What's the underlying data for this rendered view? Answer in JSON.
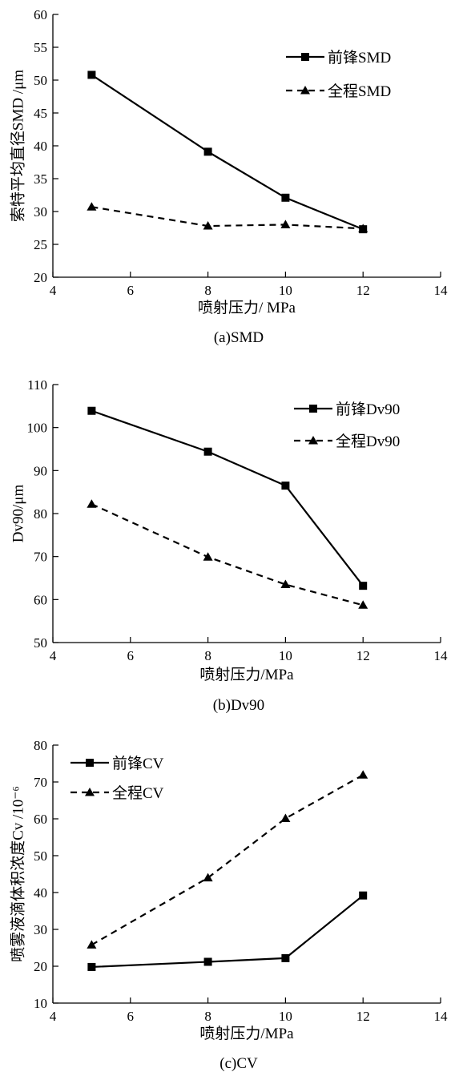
{
  "chart_data": [
    {
      "type": "line",
      "caption": "(a)SMD",
      "xlabel": "喷射压力/ MPa",
      "ylabel": "索特平均直径SMD /μm",
      "xlim": [
        4,
        14
      ],
      "ylim": [
        20,
        60
      ],
      "xticks": [
        4,
        6,
        8,
        10,
        12,
        14
      ],
      "yticks": [
        20,
        25,
        30,
        35,
        40,
        45,
        50,
        55,
        60
      ],
      "legend_position": "top-right",
      "x": [
        5,
        8,
        10,
        12
      ],
      "series": [
        {
          "name": "前锋SMD",
          "values": [
            50.8,
            39.1,
            32.1,
            27.3
          ],
          "style": "solid",
          "marker": "square"
        },
        {
          "name": "全程SMD",
          "values": [
            30.7,
            27.8,
            28.0,
            27.4
          ],
          "style": "dashed",
          "marker": "triangle"
        }
      ]
    },
    {
      "type": "line",
      "caption": "(b)Dv90",
      "xlabel": "喷射压力/MPa",
      "ylabel": "Dv90/μm",
      "xlim": [
        4,
        14
      ],
      "ylim": [
        50,
        110
      ],
      "xticks": [
        4,
        6,
        8,
        10,
        12,
        14
      ],
      "yticks": [
        50,
        60,
        70,
        80,
        90,
        100,
        110
      ],
      "legend_position": "top-right",
      "x": [
        5,
        8,
        10,
        12
      ],
      "series": [
        {
          "name": "前锋Dv90",
          "values": [
            103.9,
            94.4,
            86.5,
            63.2
          ],
          "style": "solid",
          "marker": "square"
        },
        {
          "name": "全程Dv90",
          "values": [
            82.2,
            69.9,
            63.5,
            58.7
          ],
          "style": "dashed",
          "marker": "triangle"
        }
      ]
    },
    {
      "type": "line",
      "caption": "(c)CV",
      "xlabel": "喷射压力/MPa",
      "ylabel": "喷雾液滴体积浓度Cv /10⁻⁶",
      "xlim": [
        4,
        14
      ],
      "ylim": [
        10,
        80
      ],
      "xticks": [
        4,
        6,
        8,
        10,
        12,
        14
      ],
      "yticks": [
        10,
        20,
        30,
        40,
        50,
        60,
        70,
        80
      ],
      "legend_position": "top-left",
      "x": [
        5,
        8,
        10,
        12
      ],
      "series": [
        {
          "name": "前锋CV",
          "values": [
            19.8,
            21.2,
            22.2,
            39.2
          ],
          "style": "solid",
          "marker": "square"
        },
        {
          "name": "全程CV",
          "values": [
            25.8,
            44.0,
            60.1,
            71.9
          ],
          "style": "dashed",
          "marker": "triangle"
        }
      ]
    }
  ]
}
